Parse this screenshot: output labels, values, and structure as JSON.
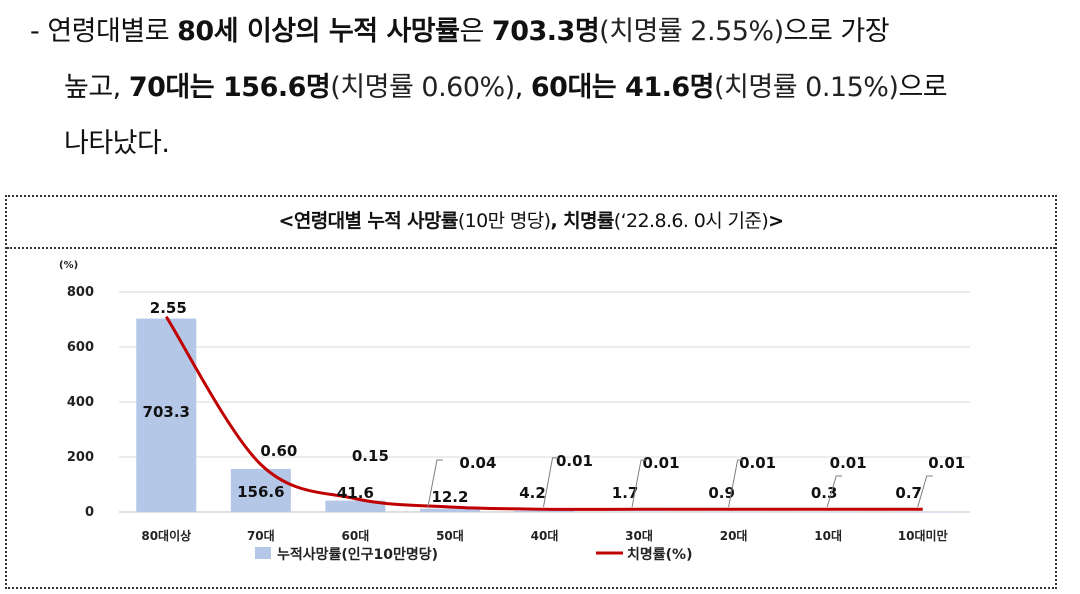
{
  "paragraph": {
    "l1_dash": "-",
    "l1_a": "연령대별로 ",
    "l1_b": "80세 이상의 누적 사망률",
    "l1_c": "은 ",
    "l1_d": "703.3명",
    "l1_e": "(치명률 2.55%)",
    "l1_f": "으로 가장",
    "l2_a": "높고, ",
    "l2_b": "70대는 156.6명",
    "l2_c": "(치명률 0.60%)",
    "l2_d": ", ",
    "l2_e": "60대는 41.6명",
    "l2_f": "(치명률 0.15%)",
    "l2_g": "으로",
    "l3": "나타났다."
  },
  "chart_title": {
    "t1": "<연령대별 누적 사망률",
    "t2": "(10만 명당)",
    "t3": ", 치명률",
    "t4": "(‘22.8.6. 0시 기준)",
    "t5": ">"
  },
  "colors": {
    "bar": "#b4c7e7",
    "line": "#c00000",
    "grid": "#d9d9d9"
  },
  "chart_data": {
    "type": "bar",
    "categories": [
      "80대이상",
      "70대",
      "60대",
      "50대",
      "40대",
      "30대",
      "20대",
      "10대",
      "10대미만"
    ],
    "unit_label": "(%)",
    "ylim": [
      0,
      800
    ],
    "yticks": [
      0,
      200,
      400,
      600,
      800
    ],
    "series": [
      {
        "name": "누적사망률(인구10만명당)",
        "kind": "bar",
        "values": [
          703.3,
          156.6,
          41.6,
          12.2,
          4.2,
          1.7,
          0.9,
          0.3,
          0.7
        ],
        "labels": [
          "703.3",
          "156.6",
          "41.6",
          "12.2",
          "4.2",
          "1.7",
          "0.9",
          "0.3",
          "0.7"
        ]
      },
      {
        "name": "치명률(%)",
        "kind": "line",
        "values": [
          2.55,
          0.6,
          0.15,
          0.04,
          0.01,
          0.01,
          0.01,
          0.01,
          0.01
        ],
        "labels": [
          "2.55",
          "0.60",
          "0.15",
          "0.04",
          "0.01",
          "0.01",
          "0.01",
          "0.01",
          "0.01"
        ]
      }
    ],
    "legend": "bottom"
  }
}
